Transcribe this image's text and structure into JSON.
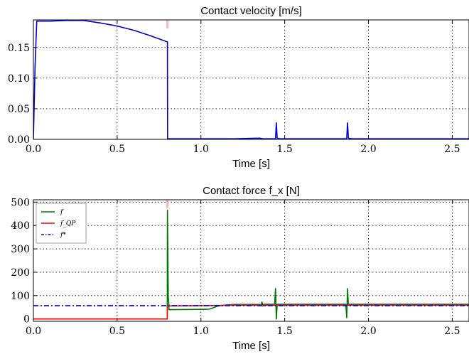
{
  "chart_data": [
    {
      "type": "line",
      "title": "Contact velocity [m/s]",
      "xlabel": "Time [s]",
      "ylabel": "",
      "xlim": [
        0.0,
        2.6
      ],
      "ylim": [
        0.0,
        0.195
      ],
      "xticks": [
        "0.0",
        "0.5",
        "1.0",
        "1.5",
        "2.0",
        "2.5"
      ],
      "yticks": [
        "0.00",
        "0.05",
        "0.10",
        "0.15"
      ],
      "grid": true,
      "series": [
        {
          "color": "#0000cc",
          "x": [
            0.0,
            0.01,
            0.02,
            0.05,
            0.1,
            0.2,
            0.3,
            0.4,
            0.5,
            0.6,
            0.7,
            0.8,
            0.801,
            1.0,
            1.2,
            1.35,
            1.37,
            1.39,
            1.42,
            1.43,
            1.445,
            1.45,
            1.455,
            1.47,
            1.8,
            1.86,
            1.87,
            1.875,
            1.88,
            1.9,
            2.6
          ],
          "y": [
            0.0,
            0.12,
            0.193,
            0.193,
            0.193,
            0.194,
            0.194,
            0.19,
            0.185,
            0.178,
            0.169,
            0.159,
            0.001,
            0.001,
            0.001,
            0.002,
            0.001,
            0.001,
            0.001,
            0.001,
            0.001,
            0.027,
            0.002,
            0.001,
            0.001,
            0.001,
            0.001,
            0.027,
            0.002,
            0.001,
            0.001
          ]
        }
      ]
    },
    {
      "type": "line",
      "title": "Contact force f_x [N]",
      "xlabel": "Time [s]",
      "ylabel": "",
      "xlim": [
        0.0,
        2.6
      ],
      "ylim": [
        -10,
        510
      ],
      "xticks": [
        "0.0",
        "0.5",
        "1.0",
        "1.5",
        "2.0",
        "2.5"
      ],
      "yticks": [
        "0",
        "100",
        "200",
        "300",
        "400",
        "500"
      ],
      "grid": true,
      "legend": "top-left",
      "series": [
        {
          "name": "f",
          "color": "#007700",
          "style": "solid",
          "x": [
            0.0,
            0.799,
            0.8,
            0.805,
            0.81,
            0.815,
            0.82,
            1.0,
            1.05,
            1.1,
            1.15,
            1.2,
            1.36,
            1.365,
            1.37,
            1.375,
            1.38,
            1.44,
            1.445,
            1.45,
            1.455,
            1.46,
            1.865,
            1.87,
            1.875,
            1.88,
            1.885,
            2.6
          ],
          "y": [
            0,
            0,
            465,
            100,
            40,
            39,
            40,
            41,
            42,
            55,
            60,
            62,
            62,
            73,
            55,
            62,
            63,
            63,
            130,
            0,
            62,
            63,
            63,
            5,
            130,
            60,
            63,
            63
          ]
        },
        {
          "name": "f_QP",
          "color": "#ff0000",
          "style": "solid",
          "x": [
            0.0,
            0.799,
            0.8,
            0.81,
            1.0,
            1.1,
            1.2,
            1.4,
            2.6
          ],
          "y": [
            0,
            0,
            55,
            56,
            57,
            58,
            59,
            59,
            59
          ]
        },
        {
          "name": "f*",
          "color": "#0000ff",
          "style": "dashdot",
          "x": [
            0.0,
            2.6
          ],
          "y": [
            57,
            57
          ]
        }
      ]
    }
  ]
}
